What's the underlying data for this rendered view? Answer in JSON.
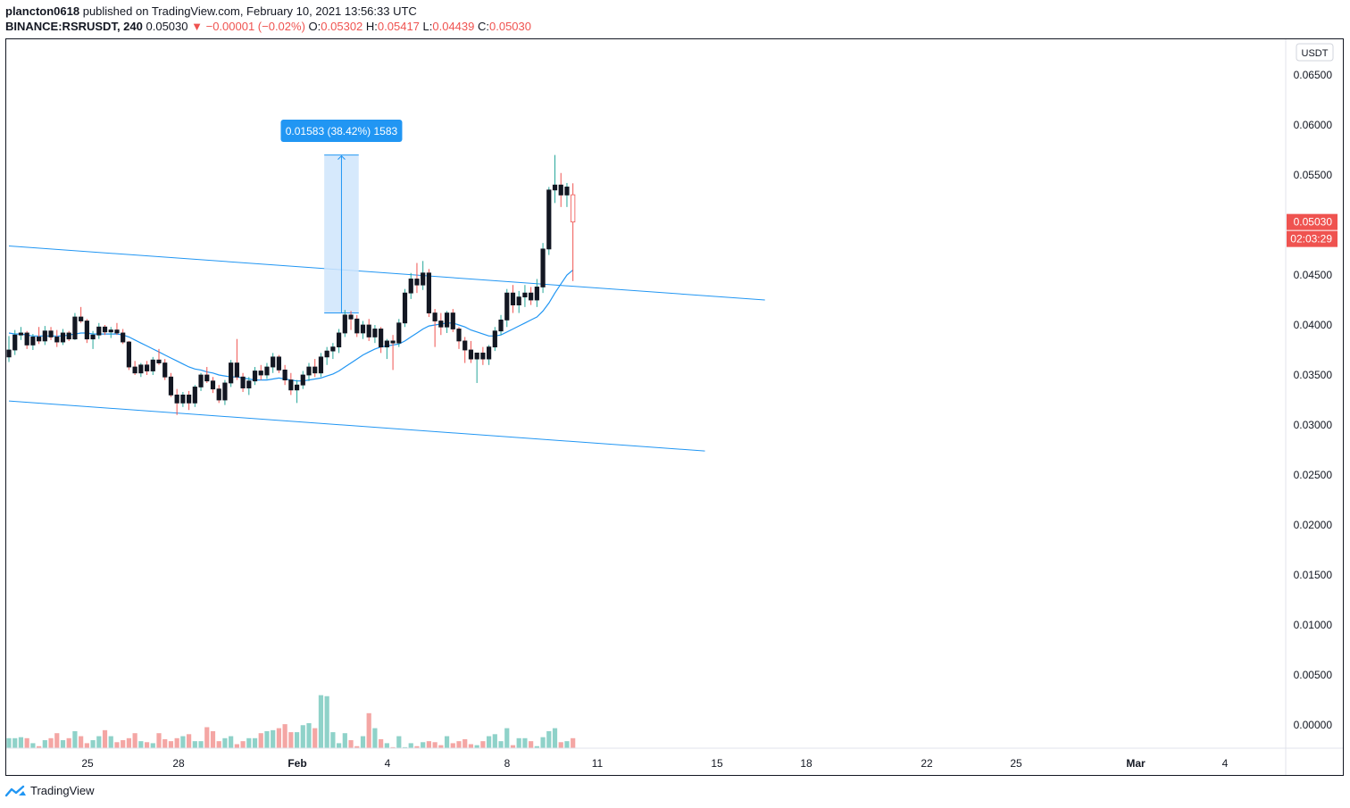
{
  "header": {
    "publisher": "plancton0618",
    "published_text": "published on TradingView.com, February 10, 2021 13:56:33 UTC",
    "symbol": "BINANCE:RSRUSDT, 240",
    "last": "0.05030",
    "change": "▼ −0.00001 (−0.02%)",
    "o_label": "O:",
    "o": "0.05302",
    "h_label": "H:",
    "h": "0.05417",
    "l_label": "L:",
    "l": "0.04439",
    "c_label": "C:",
    "c": "0.05030"
  },
  "price_axis": {
    "currency": "USDT",
    "ticks": [
      "0.06500",
      "0.06000",
      "0.05500",
      "0.05000",
      "0.04500",
      "0.04000",
      "0.03500",
      "0.03000",
      "0.02500",
      "0.02000",
      "0.01500",
      "0.01000",
      "0.00500",
      "0.00000"
    ],
    "current_price": "0.05030",
    "countdown": "02:03:29"
  },
  "time_axis": {
    "labels": [
      "25",
      "28",
      "Feb",
      "4",
      "8",
      "11",
      "15",
      "18",
      "22",
      "25",
      "Mar",
      "4"
    ]
  },
  "measure_label": "0.01583 (38.42%) 1583",
  "branding": {
    "name": "TradingView"
  },
  "colors": {
    "up": "#26a69a",
    "down": "#ef5350",
    "candle_body": "#131722",
    "ma_line": "#2196f3",
    "trendline": "#2196f3",
    "vol_up": "#8fd2c9",
    "vol_down": "#f4a6a4",
    "measure_fill": "#cfe5fb",
    "measure_label_bg": "#2196f3",
    "price_tag": "#ef5350"
  },
  "chart_data": {
    "type": "candlestick",
    "timeframe": "240",
    "x_axis_labels": [
      "25",
      "28",
      "Feb",
      "4",
      "8",
      "11",
      "15",
      "18",
      "22",
      "25",
      "Mar",
      "4"
    ],
    "ylim": [
      0.0,
      0.067
    ],
    "candles_ohlc": [
      [
        0.0368,
        0.0389,
        0.0363,
        0.0375
      ],
      [
        0.0375,
        0.0395,
        0.037,
        0.039
      ],
      [
        0.039,
        0.0398,
        0.0385,
        0.0392
      ],
      [
        0.0392,
        0.0394,
        0.0376,
        0.038
      ],
      [
        0.038,
        0.0391,
        0.0375,
        0.0388
      ],
      [
        0.0388,
        0.0398,
        0.0381,
        0.0384
      ],
      [
        0.0384,
        0.0399,
        0.038,
        0.0394
      ],
      [
        0.0394,
        0.0398,
        0.0385,
        0.0388
      ],
      [
        0.0388,
        0.0395,
        0.0378,
        0.0383
      ],
      [
        0.0383,
        0.0396,
        0.038,
        0.0392
      ],
      [
        0.0392,
        0.0394,
        0.0384,
        0.0386
      ],
      [
        0.0386,
        0.0412,
        0.0385,
        0.0408
      ],
      [
        0.0408,
        0.0418,
        0.0402,
        0.0404
      ],
      [
        0.0404,
        0.0406,
        0.0382,
        0.0386
      ],
      [
        0.0386,
        0.0394,
        0.0376,
        0.039
      ],
      [
        0.039,
        0.0402,
        0.0386,
        0.0398
      ],
      [
        0.0398,
        0.04,
        0.039,
        0.0393
      ],
      [
        0.0393,
        0.0398,
        0.0387,
        0.0395
      ],
      [
        0.0395,
        0.0402,
        0.039,
        0.0392
      ],
      [
        0.0392,
        0.0396,
        0.0381,
        0.0383
      ],
      [
        0.0383,
        0.0384,
        0.0355,
        0.0358
      ],
      [
        0.0358,
        0.0364,
        0.035,
        0.0352
      ],
      [
        0.0352,
        0.0362,
        0.0348,
        0.036
      ],
      [
        0.036,
        0.0364,
        0.035,
        0.0354
      ],
      [
        0.0354,
        0.0368,
        0.035,
        0.0365
      ],
      [
        0.0365,
        0.0376,
        0.036,
        0.0362
      ],
      [
        0.0362,
        0.0366,
        0.0345,
        0.0348
      ],
      [
        0.0348,
        0.0352,
        0.0328,
        0.033
      ],
      [
        0.033,
        0.0336,
        0.031,
        0.0322
      ],
      [
        0.0322,
        0.0333,
        0.0318,
        0.033
      ],
      [
        0.033,
        0.0334,
        0.0315,
        0.0322
      ],
      [
        0.0322,
        0.034,
        0.0318,
        0.0338
      ],
      [
        0.0338,
        0.0352,
        0.0334,
        0.035
      ],
      [
        0.035,
        0.0358,
        0.0342,
        0.0344
      ],
      [
        0.0344,
        0.0348,
        0.0332,
        0.0336
      ],
      [
        0.0336,
        0.034,
        0.0322,
        0.0325
      ],
      [
        0.0325,
        0.0345,
        0.032,
        0.0342
      ],
      [
        0.0342,
        0.0365,
        0.0338,
        0.0362
      ],
      [
        0.0362,
        0.0386,
        0.0345,
        0.0348
      ],
      [
        0.0348,
        0.0352,
        0.0333,
        0.0337
      ],
      [
        0.0337,
        0.0348,
        0.033,
        0.0344
      ],
      [
        0.0344,
        0.0358,
        0.034,
        0.0354
      ],
      [
        0.0354,
        0.036,
        0.0345,
        0.035
      ],
      [
        0.035,
        0.0362,
        0.0346,
        0.0358
      ],
      [
        0.0358,
        0.0372,
        0.0352,
        0.0368
      ],
      [
        0.0368,
        0.037,
        0.0352,
        0.0355
      ],
      [
        0.0355,
        0.036,
        0.034,
        0.0345
      ],
      [
        0.0345,
        0.0352,
        0.033,
        0.0335
      ],
      [
        0.0335,
        0.0345,
        0.0322,
        0.034
      ],
      [
        0.034,
        0.0354,
        0.0336,
        0.035
      ],
      [
        0.035,
        0.0362,
        0.0344,
        0.0358
      ],
      [
        0.0358,
        0.0366,
        0.0348,
        0.0352
      ],
      [
        0.0352,
        0.0372,
        0.0348,
        0.0368
      ],
      [
        0.0368,
        0.0378,
        0.036,
        0.0374
      ],
      [
        0.0374,
        0.0382,
        0.0366,
        0.0378
      ],
      [
        0.0378,
        0.0396,
        0.0372,
        0.0392
      ],
      [
        0.0392,
        0.0415,
        0.0388,
        0.041
      ],
      [
        0.041,
        0.0414,
        0.0395,
        0.0406
      ],
      [
        0.0406,
        0.041,
        0.0388,
        0.0392
      ],
      [
        0.0392,
        0.0404,
        0.0386,
        0.04
      ],
      [
        0.04,
        0.0406,
        0.0384,
        0.0388
      ],
      [
        0.0388,
        0.04,
        0.0382,
        0.0396
      ],
      [
        0.0396,
        0.0398,
        0.0372,
        0.0378
      ],
      [
        0.0378,
        0.0386,
        0.0366,
        0.0384
      ],
      [
        0.0384,
        0.039,
        0.0355,
        0.0382
      ],
      [
        0.0382,
        0.0406,
        0.0378,
        0.0402
      ],
      [
        0.0402,
        0.0436,
        0.0398,
        0.0432
      ],
      [
        0.0432,
        0.0452,
        0.0426,
        0.0446
      ],
      [
        0.0446,
        0.0462,
        0.0432,
        0.044
      ],
      [
        0.044,
        0.0464,
        0.0435,
        0.0452
      ],
      [
        0.0452,
        0.0456,
        0.0408,
        0.0412
      ],
      [
        0.0412,
        0.0416,
        0.0378,
        0.0404
      ],
      [
        0.0404,
        0.0412,
        0.039,
        0.0398
      ],
      [
        0.0398,
        0.0414,
        0.0392,
        0.0412
      ],
      [
        0.0412,
        0.0416,
        0.0393,
        0.0396
      ],
      [
        0.0396,
        0.0398,
        0.0376,
        0.0384
      ],
      [
        0.0384,
        0.0388,
        0.0362,
        0.0375
      ],
      [
        0.0375,
        0.0384,
        0.0362,
        0.0366
      ],
      [
        0.0366,
        0.0372,
        0.0342,
        0.0372
      ],
      [
        0.0372,
        0.0378,
        0.036,
        0.0366
      ],
      [
        0.0366,
        0.038,
        0.036,
        0.0378
      ],
      [
        0.0378,
        0.0398,
        0.0374,
        0.0394
      ],
      [
        0.0394,
        0.041,
        0.039,
        0.0405
      ],
      [
        0.0405,
        0.0436,
        0.0398,
        0.0432
      ],
      [
        0.0432,
        0.044,
        0.0412,
        0.042
      ],
      [
        0.042,
        0.0434,
        0.0412,
        0.0428
      ],
      [
        0.0428,
        0.044,
        0.0418,
        0.0432
      ],
      [
        0.0432,
        0.0438,
        0.042,
        0.0425
      ],
      [
        0.0425,
        0.0446,
        0.0418,
        0.0438
      ],
      [
        0.0438,
        0.0482,
        0.0432,
        0.0476
      ],
      [
        0.0476,
        0.0538,
        0.047,
        0.0535
      ],
      [
        0.0535,
        0.057,
        0.0522,
        0.054
      ],
      [
        0.054,
        0.0552,
        0.0518,
        0.053
      ],
      [
        0.053,
        0.0542,
        0.0518,
        0.0538
      ],
      [
        0.05302,
        0.05417,
        0.04439,
        0.0503
      ]
    ],
    "ma_values": [
      0.0392,
      0.0391,
      0.0391,
      0.039,
      0.0389,
      0.0389,
      0.0389,
      0.0389,
      0.0389,
      0.0389,
      0.039,
      0.0391,
      0.0392,
      0.0392,
      0.0391,
      0.0391,
      0.0391,
      0.0391,
      0.0391,
      0.039,
      0.0388,
      0.0385,
      0.0382,
      0.0379,
      0.0376,
      0.0373,
      0.037,
      0.0367,
      0.0364,
      0.0361,
      0.0358,
      0.0356,
      0.0355,
      0.0353,
      0.0352,
      0.035,
      0.0349,
      0.0348,
      0.0348,
      0.0347,
      0.0346,
      0.0345,
      0.0345,
      0.0345,
      0.0346,
      0.0347,
      0.0346,
      0.0345,
      0.0344,
      0.0344,
      0.0345,
      0.0346,
      0.0347,
      0.0349,
      0.0351,
      0.0354,
      0.0358,
      0.0362,
      0.0366,
      0.037,
      0.0373,
      0.0376,
      0.0378,
      0.0379,
      0.038,
      0.0381,
      0.0384,
      0.0388,
      0.0392,
      0.0396,
      0.0399,
      0.04,
      0.0401,
      0.0402,
      0.0402,
      0.04,
      0.0398,
      0.0395,
      0.0393,
      0.0391,
      0.0389,
      0.0389,
      0.039,
      0.0393,
      0.0396,
      0.0399,
      0.0402,
      0.0405,
      0.0408,
      0.0414,
      0.0422,
      0.0432,
      0.0441,
      0.045,
      0.0455
    ],
    "volume": [
      0.001,
      0.001,
      0.0011,
      0.001,
      0.0005,
      0.0002,
      0.0008,
      0.001,
      0.0015,
      0.0008,
      0.001,
      0.0017,
      0.0012,
      0.0005,
      0.0008,
      0.0012,
      0.0018,
      0.0012,
      0.0006,
      0.0008,
      0.001,
      0.0015,
      0.0007,
      0.0006,
      0.0005,
      0.0015,
      0.0009,
      0.0007,
      0.001,
      0.0012,
      0.0014,
      0.0007,
      0.0007,
      0.0021,
      0.0017,
      0.0007,
      0.001,
      0.0012,
      0.0004,
      0.0007,
      0.001,
      0.001,
      0.0015,
      0.0017,
      0.0018,
      0.002,
      0.0024,
      0.0016,
      0.0016,
      0.0023,
      0.0025,
      0.002,
      0.0053,
      0.0052,
      0.0016,
      0.0005,
      0.0015,
      0.0008,
      0.0002,
      0.0012,
      0.0035,
      0.002,
      0.0009,
      0.0005,
      0.0001,
      0.0012,
      0.0001,
      0.0005,
      0.0002,
      0.0006,
      0.0007,
      0.0006,
      0.0003,
      0.0012,
      0.0005,
      0.0007,
      0.0009,
      0.0004,
      0.0003,
      0.0007,
      0.0012,
      0.0014,
      0.0007,
      0.002,
      0.0003,
      0.001,
      0.001,
      0.0007,
      0.0002,
      0.0011,
      0.0017,
      0.002,
      0.0006,
      0.0007,
      0.001
    ],
    "trendlines": [
      {
        "from": [
          0,
          0.0479
        ],
        "to": [
          126,
          0.0425
        ]
      },
      {
        "from": [
          0,
          0.0324
        ],
        "to": [
          116,
          0.0274
        ]
      }
    ],
    "measure": {
      "from_index": 53,
      "to_index": 58,
      "low": 0.0412,
      "high": 0.057,
      "label": "0.01583 (38.42%) 1583"
    }
  }
}
